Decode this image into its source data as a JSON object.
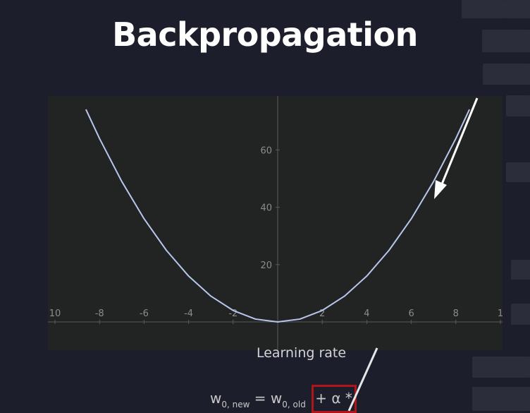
{
  "slide": {
    "title": "Backpropagation",
    "learning_rate_label": "Learning rate"
  },
  "formula": {
    "w_new_base": "w",
    "w_new_sub": "0, new",
    "equals": " = ",
    "w_old_base": "w",
    "w_old_sub": "0, old",
    "highlighted_term": "+ α *"
  },
  "colors": {
    "background": "#1d1e2c",
    "plot_background": "#222323",
    "curve": "#b8c6ee",
    "highlight_box": "#b0151a",
    "arrow": "#ffffff"
  },
  "chart_data": {
    "type": "line",
    "title": "",
    "xlabel": "",
    "ylabel": "",
    "function": "y = x^2",
    "x": [
      -8.6,
      -8,
      -7,
      -6,
      -5,
      -4,
      -3,
      -2,
      -1,
      0,
      1,
      2,
      3,
      4,
      5,
      6,
      7,
      8,
      8.6
    ],
    "y": [
      73.96,
      64,
      49,
      36,
      25,
      16,
      9,
      4,
      1,
      0,
      1,
      4,
      9,
      16,
      25,
      36,
      49,
      64,
      73.96
    ],
    "xlim": [
      -10,
      10
    ],
    "ylim": [
      -10,
      78
    ],
    "x_tick_labels": [
      "10",
      "-8",
      "-6",
      "-4",
      "-2",
      "2",
      "4",
      "6",
      "8",
      "1"
    ],
    "y_tick_labels": [
      "60",
      "40",
      "20"
    ],
    "grid": false,
    "legend": "none",
    "annotation": "arrow pointing down along the right side of the curve"
  }
}
